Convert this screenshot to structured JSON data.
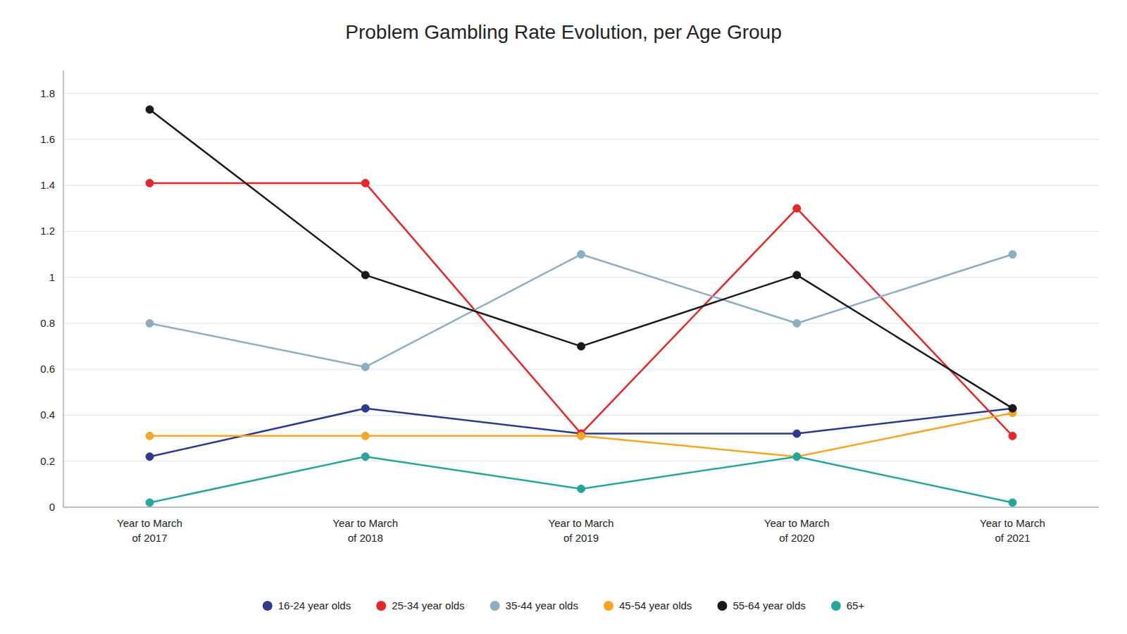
{
  "chart_data": {
    "type": "line",
    "title": "Problem Gambling Rate Evolution, per Age Group",
    "categories": [
      "Year to March\nof 2017",
      "Year to March\nof 2018",
      "Year to March\nof 2019",
      "Year to March\nof 2020",
      "Year to March\nof 2021"
    ],
    "series": [
      {
        "name": "16-24 year olds",
        "color": "#2d3a8c",
        "marker": "circle",
        "values": [
          0.22,
          0.43,
          0.32,
          0.32,
          0.43
        ]
      },
      {
        "name": "25-34 year olds",
        "color": "#e8262a",
        "marker": "circle",
        "values": [
          1.41,
          1.41,
          0.32,
          1.3,
          0.31
        ]
      },
      {
        "name": "35-44 year olds",
        "color": "#8aafc0",
        "marker": "circle",
        "values": [
          0.8,
          0.61,
          1.1,
          0.8,
          1.1
        ]
      },
      {
        "name": "45-54 year olds",
        "color": "#f5a623",
        "marker": "circle",
        "values": [
          0.31,
          0.31,
          0.31,
          0.22,
          0.41
        ]
      },
      {
        "name": "55-64 year olds",
        "color": "#1a1a1a",
        "marker": "circle",
        "values": [
          1.73,
          1.01,
          0.7,
          1.01,
          0.43
        ]
      },
      {
        "name": "65+",
        "color": "#26a69a",
        "marker": "circle",
        "values": [
          0.02,
          0.22,
          0.08,
          0.22,
          0.02
        ]
      }
    ],
    "ylim": [
      0,
      1.9
    ],
    "yticks": [
      0,
      0.2,
      0.4,
      0.6,
      0.8,
      1,
      1.2,
      1.4,
      1.6,
      1.8
    ],
    "grid": true,
    "legend": "bottom"
  }
}
